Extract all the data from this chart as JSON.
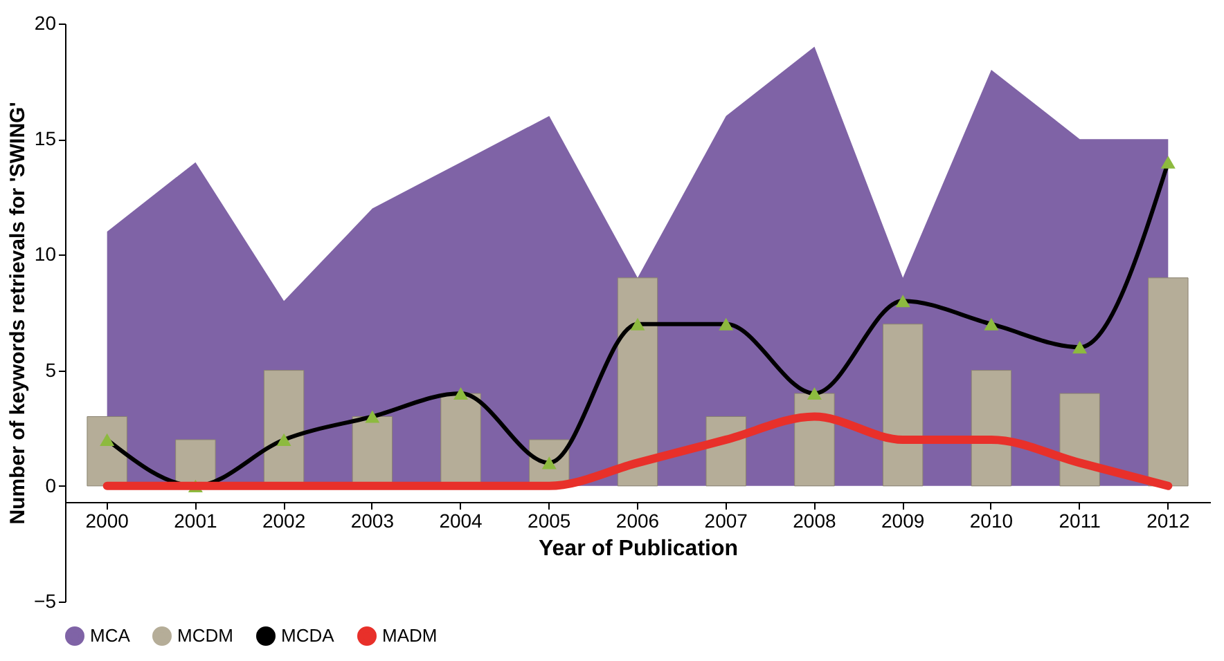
{
  "chart_data": {
    "type": "bar",
    "xlabel": "Year of Publication",
    "ylabel": "Number of keywords retrievals for 'SWING'",
    "categories": [
      "2000",
      "2001",
      "2002",
      "2003",
      "2004",
      "2005",
      "2006",
      "2007",
      "2008",
      "2009",
      "2010",
      "2011",
      "2012"
    ],
    "ylim": [
      -5,
      20
    ],
    "yticks": [
      -5,
      0,
      5,
      10,
      15,
      20
    ],
    "grid": false,
    "legend": "bottom",
    "series": [
      {
        "name": "MCA",
        "type": "area",
        "color": "#7f63a6",
        "values": [
          11,
          14,
          8,
          12,
          14,
          16,
          9,
          16,
          19,
          9,
          18,
          15,
          15
        ]
      },
      {
        "name": "MCDM",
        "color": "#b5ad98",
        "values": [
          3,
          2,
          5,
          3,
          4,
          2,
          9,
          3,
          4,
          7,
          5,
          4,
          9
        ]
      },
      {
        "name": "MCDA",
        "type": "line",
        "color": "#000000",
        "marker": "triangle",
        "line_style": "solid",
        "values": [
          2,
          0,
          2,
          3,
          4,
          1,
          7,
          7,
          4,
          8,
          7,
          6,
          14
        ]
      },
      {
        "name": "MADM",
        "type": "line",
        "color": "#e8302a",
        "marker": "none",
        "line_style": "solid",
        "values": [
          0,
          0,
          0,
          0,
          0,
          0,
          1,
          2,
          3,
          2,
          2,
          1,
          0
        ]
      }
    ]
  }
}
